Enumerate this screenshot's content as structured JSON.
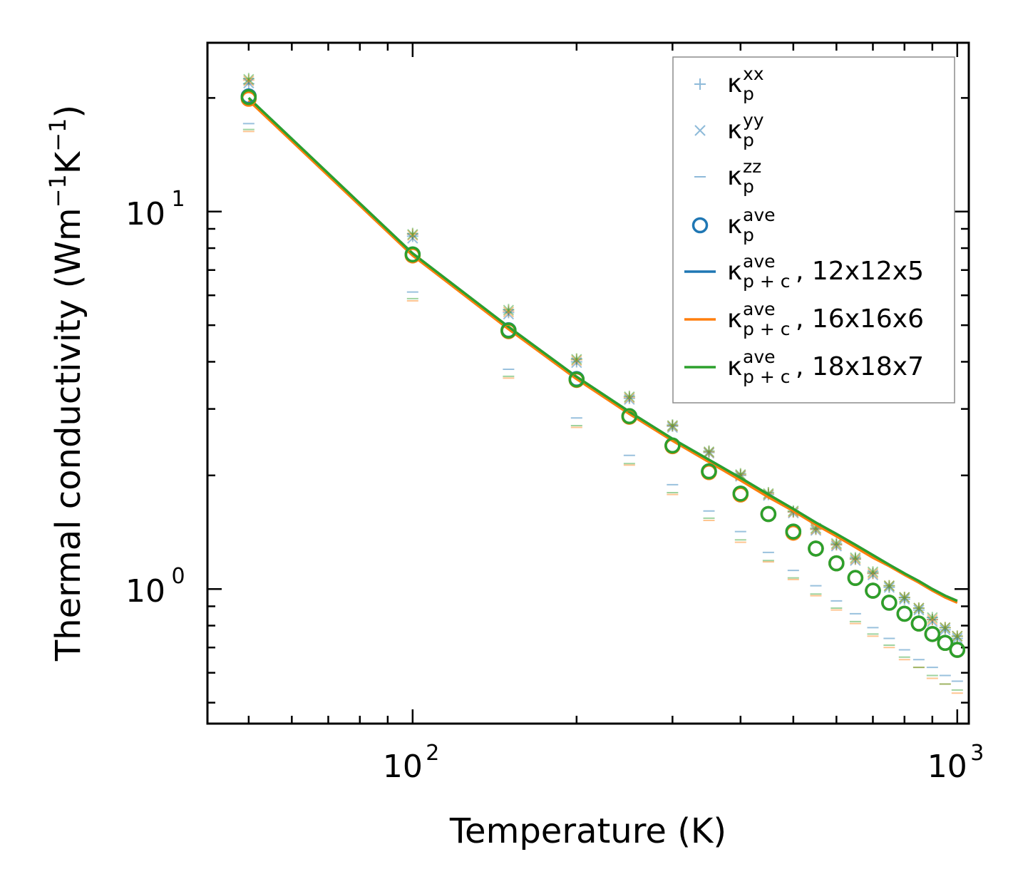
{
  "chart_data": {
    "type": "scatter",
    "title": "",
    "xlabel": "Temperature (K)",
    "ylabel": {
      "prefix": "Thermal conductivity (Wm",
      "exp1": "−1",
      "mid": "K",
      "exp2": "−1",
      "suffix": ")"
    },
    "xscale": "log",
    "yscale": "log",
    "xlim": [
      42,
      1050
    ],
    "ylim": [
      0.44,
      28
    ],
    "xticks": [
      {
        "value": 100,
        "base": "10",
        "exp": "2"
      },
      {
        "value": 1000,
        "base": "10",
        "exp": "3"
      }
    ],
    "yticks": [
      {
        "value": 1,
        "base": "10",
        "exp": "0"
      },
      {
        "value": 10,
        "base": "10",
        "exp": "1"
      }
    ],
    "grid": false,
    "legend_position": "top-right",
    "x": [
      50,
      100,
      150,
      200,
      250,
      300,
      350,
      400,
      450,
      500,
      550,
      600,
      650,
      700,
      750,
      800,
      850,
      900,
      950,
      1000
    ],
    "series": [
      {
        "name": "kp_xx_12",
        "kind": "plus",
        "color": "#1f77b4",
        "values": [
          21.8,
          8.6,
          5.4,
          4.0,
          3.2,
          2.7,
          2.3,
          2.0,
          1.78,
          1.6,
          1.44,
          1.31,
          1.2,
          1.1,
          1.01,
          0.94,
          0.88,
          0.83,
          0.78,
          0.74
        ]
      },
      {
        "name": "kp_xx_16",
        "kind": "plus",
        "color": "#ff7f0e",
        "values": [
          22.3,
          8.7,
          5.45,
          4.05,
          3.22,
          2.71,
          2.31,
          2.01,
          1.79,
          1.6,
          1.44,
          1.31,
          1.2,
          1.1,
          1.02,
          0.95,
          0.89,
          0.83,
          0.79,
          0.75
        ]
      },
      {
        "name": "kp_xx_18",
        "kind": "plus",
        "color": "#2ca02c",
        "values": [
          22.5,
          8.75,
          5.5,
          4.07,
          3.24,
          2.72,
          2.32,
          2.02,
          1.8,
          1.61,
          1.45,
          1.32,
          1.21,
          1.11,
          1.02,
          0.95,
          0.89,
          0.84,
          0.79,
          0.75
        ]
      },
      {
        "name": "kp_yy_12",
        "kind": "x",
        "color": "#1f77b4",
        "values": [
          21.9,
          8.5,
          5.35,
          3.98,
          3.18,
          2.68,
          2.29,
          1.99,
          1.77,
          1.59,
          1.43,
          1.3,
          1.19,
          1.09,
          1.01,
          0.94,
          0.88,
          0.82,
          0.78,
          0.74
        ]
      },
      {
        "name": "kp_yy_16",
        "kind": "x",
        "color": "#ff7f0e",
        "values": [
          22.2,
          8.65,
          5.42,
          4.03,
          3.21,
          2.7,
          2.3,
          2.0,
          1.78,
          1.6,
          1.44,
          1.31,
          1.2,
          1.1,
          1.02,
          0.95,
          0.89,
          0.83,
          0.79,
          0.75
        ]
      },
      {
        "name": "kp_yy_18",
        "kind": "x",
        "color": "#2ca02c",
        "values": [
          22.4,
          8.7,
          5.48,
          4.06,
          3.23,
          2.71,
          2.31,
          2.01,
          1.79,
          1.61,
          1.45,
          1.32,
          1.21,
          1.11,
          1.02,
          0.95,
          0.89,
          0.84,
          0.79,
          0.75
        ]
      },
      {
        "name": "kp_zz_12",
        "kind": "dash",
        "color": "#1f77b4",
        "values": [
          17.1,
          6.12,
          3.82,
          2.84,
          2.26,
          1.89,
          1.61,
          1.42,
          1.25,
          1.12,
          1.02,
          0.93,
          0.86,
          0.79,
          0.74,
          0.69,
          0.65,
          0.62,
          0.59,
          0.57
        ]
      },
      {
        "name": "kp_zz_16",
        "kind": "dash",
        "color": "#ff7f0e",
        "values": [
          16.3,
          5.8,
          3.62,
          2.68,
          2.13,
          1.78,
          1.52,
          1.33,
          1.18,
          1.06,
          0.96,
          0.88,
          0.81,
          0.75,
          0.7,
          0.65,
          0.62,
          0.58,
          0.56,
          0.53
        ]
      },
      {
        "name": "kp_zz_18",
        "kind": "dash",
        "color": "#2ca02c",
        "values": [
          16.5,
          5.88,
          3.66,
          2.71,
          2.15,
          1.8,
          1.54,
          1.35,
          1.19,
          1.07,
          0.97,
          0.89,
          0.82,
          0.76,
          0.71,
          0.66,
          0.62,
          0.59,
          0.56,
          0.54
        ]
      },
      {
        "name": "kp_ave_12",
        "kind": "circle",
        "color": "#1f77b4",
        "values": [
          20.2,
          7.7,
          4.85,
          3.6,
          2.87,
          2.4,
          2.05,
          1.79,
          1.58,
          1.42,
          1.28,
          1.17,
          1.07,
          0.99,
          0.92,
          0.86,
          0.81,
          0.76,
          0.72,
          0.69
        ]
      },
      {
        "name": "kp_ave_16",
        "kind": "circle",
        "color": "#ff7f0e",
        "values": [
          19.9,
          7.65,
          4.82,
          3.58,
          2.86,
          2.39,
          2.04,
          1.78,
          1.58,
          1.41,
          1.28,
          1.17,
          1.07,
          0.99,
          0.92,
          0.86,
          0.81,
          0.76,
          0.72,
          0.69
        ]
      },
      {
        "name": "kp_ave_18",
        "kind": "circle",
        "color": "#2ca02c",
        "values": [
          20.1,
          7.7,
          4.84,
          3.59,
          2.87,
          2.4,
          2.05,
          1.79,
          1.58,
          1.42,
          1.28,
          1.17,
          1.07,
          0.99,
          0.92,
          0.86,
          0.81,
          0.76,
          0.72,
          0.69
        ]
      },
      {
        "name": "kpc_ave_12x12x5",
        "kind": "line",
        "color": "#1f77b4",
        "values": [
          20.0,
          7.75,
          4.95,
          3.65,
          2.95,
          2.5,
          2.2,
          1.97,
          1.78,
          1.63,
          1.5,
          1.4,
          1.31,
          1.23,
          1.16,
          1.1,
          1.05,
          1.0,
          0.96,
          0.93
        ]
      },
      {
        "name": "kpc_ave_16x16x6",
        "kind": "line",
        "color": "#ff7f0e",
        "values": [
          19.7,
          7.65,
          4.88,
          3.6,
          2.91,
          2.47,
          2.17,
          1.94,
          1.75,
          1.61,
          1.48,
          1.38,
          1.29,
          1.21,
          1.15,
          1.09,
          1.04,
          0.99,
          0.95,
          0.92
        ]
      },
      {
        "name": "kpc_ave_18x18x7",
        "kind": "line",
        "color": "#2ca02c",
        "values": [
          20.0,
          7.75,
          4.95,
          3.65,
          2.95,
          2.5,
          2.2,
          1.97,
          1.78,
          1.63,
          1.5,
          1.4,
          1.31,
          1.23,
          1.16,
          1.1,
          1.05,
          1.0,
          0.96,
          0.93
        ]
      }
    ],
    "legend": [
      {
        "kind": "plus",
        "color": "#1f77b4",
        "alpha": 0.5,
        "base": "κ",
        "sup": "xx",
        "sub": "p",
        "suffix": ""
      },
      {
        "kind": "x",
        "color": "#1f77b4",
        "alpha": 0.5,
        "base": "κ",
        "sup": "yy",
        "sub": "p",
        "suffix": ""
      },
      {
        "kind": "dash",
        "color": "#1f77b4",
        "alpha": 0.5,
        "base": "κ",
        "sup": "zz",
        "sub": "p",
        "suffix": ""
      },
      {
        "kind": "circle",
        "color": "#1f77b4",
        "alpha": 1,
        "base": "κ",
        "sup": "ave",
        "sub": "p",
        "suffix": ""
      },
      {
        "kind": "line",
        "color": "#1f77b4",
        "alpha": 1,
        "base": "κ",
        "sup": "ave",
        "sub": "p + c",
        "suffix": ", 12x12x5"
      },
      {
        "kind": "line",
        "color": "#ff7f0e",
        "alpha": 1,
        "base": "κ",
        "sup": "ave",
        "sub": "p + c",
        "suffix": ", 16x16x6"
      },
      {
        "kind": "line",
        "color": "#2ca02c",
        "alpha": 1,
        "base": "κ",
        "sup": "ave",
        "sub": "p + c",
        "suffix": ", 18x18x7"
      }
    ]
  }
}
